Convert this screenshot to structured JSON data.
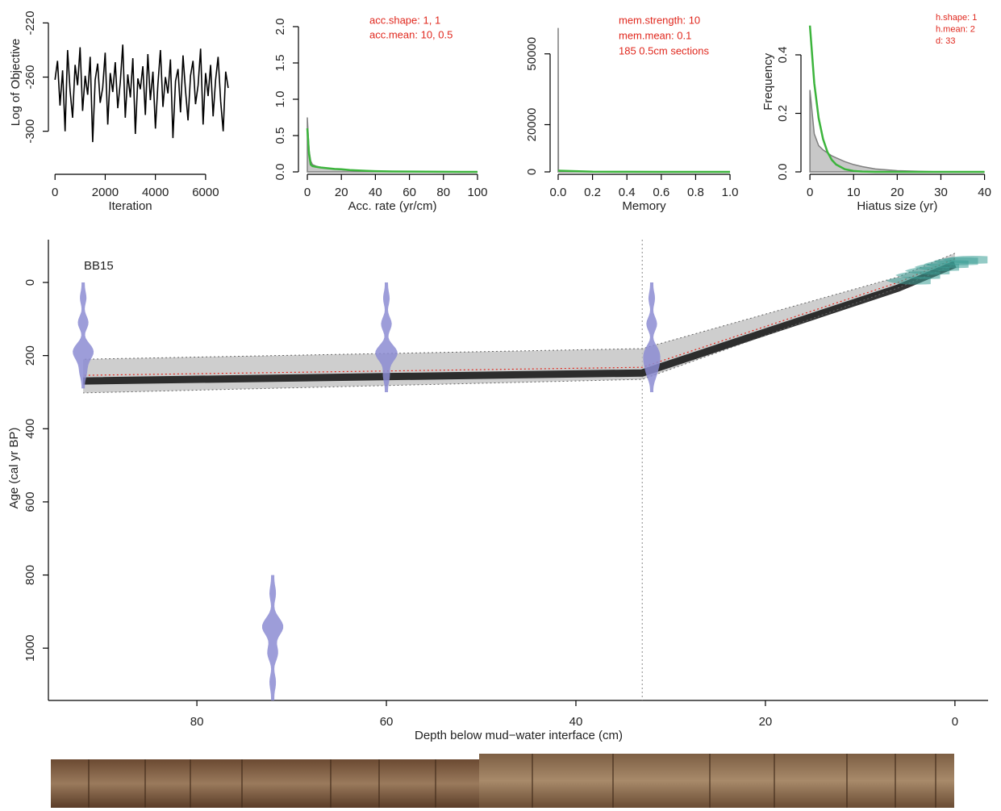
{
  "chart_data": [
    {
      "type": "line",
      "xlabel": "Iteration",
      "ylabel": "Log of Objective",
      "x": [
        0,
        100,
        200,
        300,
        400,
        500,
        600,
        700,
        800,
        900,
        1000,
        1100,
        1200,
        1300,
        1400,
        1500,
        1600,
        1700,
        1800,
        1900,
        2000,
        2100,
        2200,
        2300,
        2400,
        2500,
        2600,
        2700,
        2800,
        2900,
        3000,
        3100,
        3200,
        3300,
        3400,
        3500,
        3600,
        3700,
        3800,
        3900,
        4000,
        4100,
        4200,
        4300,
        4400,
        4500,
        4600,
        4700,
        4800,
        4900,
        5000,
        5100,
        5200,
        5300,
        5400,
        5500,
        5600,
        5700,
        5800,
        5900,
        6000,
        6100,
        6200,
        6300,
        6400,
        6500,
        6600,
        6700,
        6800,
        6900
      ],
      "values": [
        -262,
        -248,
        -281,
        -255,
        -300,
        -240,
        -270,
        -290,
        -251,
        -266,
        -238,
        -285,
        -259,
        -273,
        -245,
        -308,
        -262,
        -250,
        -279,
        -268,
        -242,
        -295,
        -257,
        -271,
        -249,
        -283,
        -264,
        -236,
        -290,
        -258,
        -275,
        -246,
        -302,
        -261,
        -269,
        -252,
        -288,
        -243,
        -277,
        -256,
        -298,
        -265,
        -240,
        -282,
        -260,
        -272,
        -247,
        -305,
        -263,
        -254,
        -286,
        -244,
        -270,
        -292,
        -259,
        -248,
        -280,
        -266,
        -239,
        -295,
        -257,
        -274,
        -251,
        -289,
        -262,
        -245,
        -278,
        -300,
        -256,
        -268
      ],
      "color": "#000000",
      "xlim": [
        -200,
        7000
      ],
      "xticks": [
        0,
        2000,
        4000,
        6000
      ],
      "ylim": [
        -330,
        -212
      ],
      "yticks": [
        -220,
        -260,
        -300
      ]
    },
    {
      "type": "area",
      "xlabel": "Acc. rate (yr/cm)",
      "annotations": [
        "acc.shape: 1, 1",
        "acc.mean: 10, 0.5"
      ],
      "series": [
        {
          "color": "#7f7f7f",
          "fill": "#c8c8c8",
          "x": [
            0,
            1,
            2,
            3,
            5,
            8,
            12,
            16,
            20,
            25,
            30,
            35,
            40,
            50,
            60,
            70,
            80,
            90,
            100
          ],
          "values": [
            0.75,
            0.3,
            0.15,
            0.1,
            0.08,
            0.06,
            0.05,
            0.04,
            0.03,
            0.02,
            0.015,
            0.01,
            0.005,
            0,
            0,
            0,
            0,
            0,
            0
          ]
        },
        {
          "color": "#3cb43c",
          "x": [
            0,
            1,
            2,
            3,
            5,
            8,
            12,
            16,
            20,
            25,
            30,
            35,
            40,
            50,
            60,
            70,
            80,
            90,
            100
          ],
          "values": [
            0.6,
            0.25,
            0.1,
            0.08,
            0.07,
            0.06,
            0.05,
            0.04,
            0.035,
            0.025,
            0.02,
            0.015,
            0.01,
            0.006,
            0.004,
            0.002,
            0.001,
            0,
            0
          ]
        }
      ],
      "xlim": [
        -3,
        104
      ],
      "xticks": [
        0,
        20,
        40,
        60,
        80,
        100
      ],
      "ylim": [
        0,
        2.2
      ],
      "yticks": [
        {
          "value": 0,
          "label": "0.0"
        },
        0.5,
        {
          "value": 1,
          "label": "1.0"
        },
        1.5,
        {
          "value": 2,
          "label": "2.0"
        }
      ]
    },
    {
      "type": "area",
      "xlabel": "Memory",
      "annotations": [
        "mem.strength: 10",
        "mem.mean: 0.1",
        "185 0.5cm sections"
      ],
      "series": [
        {
          "color": "#7f7f7f",
          "fill": "#c8c8c8",
          "x": [
            0,
            0.002,
            0.004,
            1
          ],
          "values": [
            61000,
            0,
            0,
            0
          ]
        },
        {
          "color": "#3cb43c",
          "x": [
            0,
            0.1,
            0.2,
            0.4,
            0.6,
            0.8,
            1
          ],
          "values": [
            500,
            300,
            100,
            20,
            5,
            1,
            0
          ]
        }
      ],
      "xlim": [
        -0.03,
        1.05
      ],
      "xticks": [
        {
          "value": 0,
          "label": "0.0"
        },
        0.2,
        0.4,
        0.6,
        0.8,
        {
          "value": 1,
          "label": "1.0"
        }
      ],
      "ylim": [
        0,
        67000
      ],
      "yticks": [
        0,
        20000,
        50000
      ]
    },
    {
      "type": "area",
      "xlabel": "Hiatus size (yr)",
      "ylabel": "Frequency",
      "annotations": [
        "h.shape: 1",
        "h.mean: 2",
        "d: 33"
      ],
      "series": [
        {
          "color": "#7f7f7f",
          "fill": "#c8c8c8",
          "x": [
            0,
            1,
            2,
            3,
            4,
            5,
            6,
            8,
            10,
            12,
            15,
            20,
            25,
            30,
            40
          ],
          "values": [
            0.28,
            0.13,
            0.09,
            0.075,
            0.065,
            0.055,
            0.048,
            0.035,
            0.025,
            0.018,
            0.01,
            0.004,
            0.002,
            0,
            0
          ]
        },
        {
          "color": "#3cb43c",
          "x": [
            0,
            1,
            2,
            3,
            4,
            5,
            6,
            8,
            10,
            12,
            15,
            20,
            25,
            30,
            40
          ],
          "values": [
            0.5,
            0.303,
            0.184,
            0.112,
            0.068,
            0.041,
            0.025,
            0.009,
            0.003,
            0.001,
            0,
            0,
            0,
            0,
            0
          ]
        }
      ],
      "xlim": [
        -1.5,
        41
      ],
      "xticks": [
        0,
        10,
        20,
        30,
        40
      ],
      "ylim": [
        0,
        0.55
      ],
      "yticks": [
        {
          "value": 0,
          "label": "0.0"
        },
        0.2,
        0.4
      ]
    },
    {
      "type": "age-depth",
      "title": "BB15",
      "xlabel": "Depth below mud−water interface (cm)",
      "ylabel": "Age (cal yr BP)",
      "xlim": [
        -3.5,
        95.5
      ],
      "x_inverted": true,
      "xticks": [
        80,
        60,
        40,
        20,
        0
      ],
      "ylim": [
        -117,
        1143
      ],
      "y_inverted": true,
      "yticks": [
        0,
        200,
        400,
        600,
        800,
        1000
      ],
      "hiatus_depth": 33,
      "model": {
        "x": [
          0,
          6,
          33,
          92
        ],
        "mean": [
          -65,
          0,
          232,
          254
        ],
        "min": [
          -80,
          -15,
          181,
          210
        ],
        "max": [
          -50,
          15,
          265,
          302
        ]
      },
      "dates": {
        "color": "#8c8cd2",
        "depths": [
          92,
          60,
          32,
          72
        ],
        "ages": [
          200,
          200,
          220,
          950
        ],
        "age_min": [
          0,
          0,
          0,
          800
        ],
        "age_max": [
          290,
          300,
          300,
          1143
        ]
      },
      "pb210": {
        "color": "#3c9f96",
        "depths": [
          0,
          1,
          2,
          3,
          4,
          5,
          6
        ],
        "ages": [
          -62,
          -58,
          -50,
          -42,
          -32,
          -20,
          -5
        ]
      }
    }
  ]
}
